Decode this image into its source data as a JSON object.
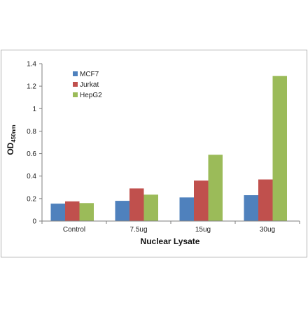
{
  "chart_data": {
    "type": "bar",
    "title": "",
    "xlabel": "Nuclear Lysate",
    "ylabel": {
      "main": "OD",
      "subscript": "450nm"
    },
    "categories": [
      "Control",
      "7.5ug",
      "15ug",
      "30ug"
    ],
    "ylim": [
      0,
      1.4
    ],
    "yticks": [
      "0",
      "0.2",
      "0.4",
      "0.6",
      "0.8",
      "1",
      "1.2",
      "1.4"
    ],
    "ytick_values": [
      0,
      0.2,
      0.4,
      0.6,
      0.8,
      1.0,
      1.2,
      1.4
    ],
    "grid": false,
    "legend_position": "top-left",
    "series": [
      {
        "name": "MCF7",
        "color": "#4F81BD",
        "values": [
          0.155,
          0.18,
          0.21,
          0.23
        ]
      },
      {
        "name": "Jurkat",
        "color": "#C0504D",
        "values": [
          0.175,
          0.29,
          0.36,
          0.37
        ]
      },
      {
        "name": "HepG2",
        "color": "#9BBB59",
        "values": [
          0.16,
          0.235,
          0.59,
          1.29
        ]
      }
    ]
  }
}
